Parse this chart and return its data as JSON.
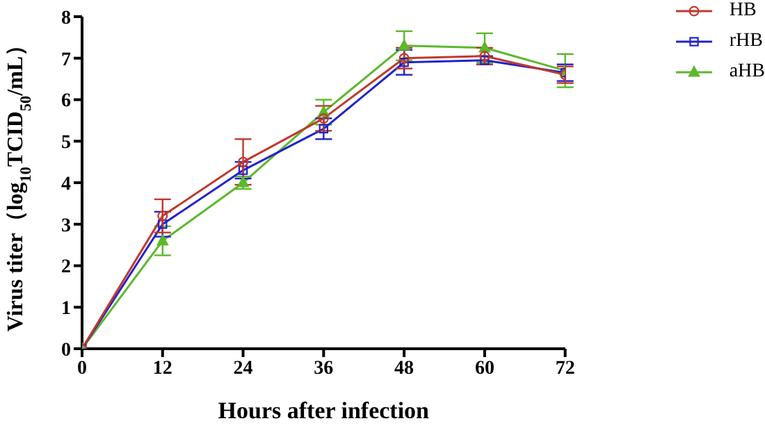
{
  "chart_data": {
    "type": "line",
    "xlabel": "Hours after infection",
    "ylabel": "Virus titer（log$_{10}$TCID$_{50}$/mL）",
    "x": [
      0,
      12,
      24,
      36,
      48,
      60,
      72
    ],
    "series": [
      {
        "name": "HB",
        "color": "#c0392b",
        "marker": "circle",
        "values": [
          0,
          3.2,
          4.5,
          5.55,
          7.0,
          7.05,
          6.6
        ],
        "errors": [
          null,
          0.4,
          0.55,
          0.3,
          0.25,
          0.2,
          0.2
        ]
      },
      {
        "name": "rHB",
        "color": "#2222cc",
        "marker": "square",
        "values": [
          0,
          3.0,
          4.3,
          5.3,
          6.9,
          6.95,
          6.65
        ],
        "errors": [
          null,
          0.3,
          0.2,
          0.25,
          0.3,
          0.1,
          0.2
        ]
      },
      {
        "name": "aHB",
        "color": "#5cb82c",
        "marker": "triangle",
        "values": [
          0,
          2.6,
          4.0,
          5.7,
          7.3,
          7.25,
          6.7
        ],
        "errors": [
          null,
          0.35,
          0.15,
          0.3,
          0.35,
          0.35,
          0.4
        ]
      }
    ],
    "xlim": [
      0,
      72
    ],
    "xticks": [
      0,
      12,
      24,
      36,
      48,
      60,
      72
    ],
    "ylim": [
      0,
      8
    ],
    "yticks": [
      0,
      1,
      2,
      3,
      4,
      5,
      6,
      7,
      8
    ],
    "grid": false,
    "legend": "top right"
  }
}
